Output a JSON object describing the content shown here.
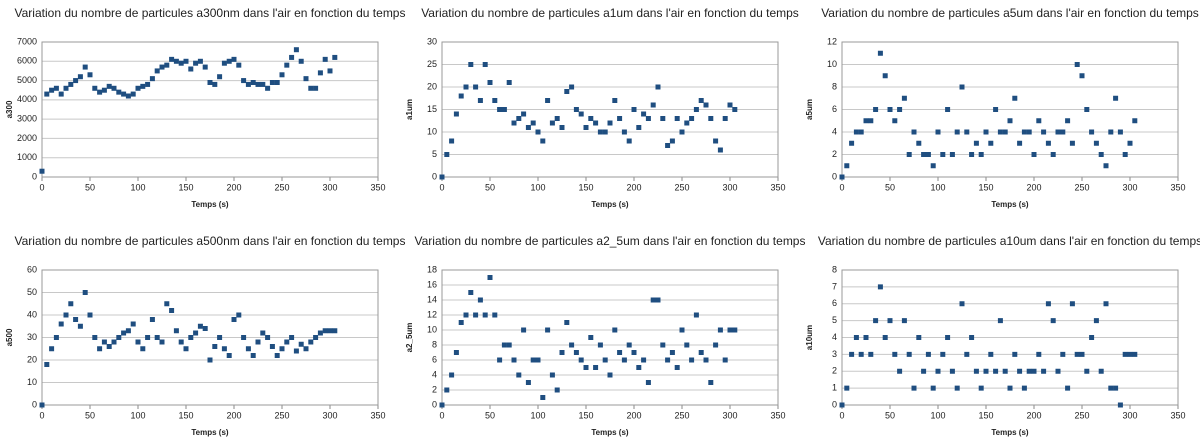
{
  "chart_data": [
    {
      "type": "scatter",
      "title": "Variation du nombre de particules a300nm dans l'air en fonction du temps",
      "x_label": "Temps (s)",
      "y_label": "a300",
      "color": "#1f4e80",
      "grid": true,
      "xlim": [
        0,
        350
      ],
      "xticks": [
        0,
        50,
        100,
        150,
        200,
        250,
        300,
        350
      ],
      "ylim": [
        0,
        7000
      ],
      "yticks": [
        0,
        1000,
        2000,
        3000,
        4000,
        5000,
        6000,
        7000
      ],
      "x": [
        0,
        5,
        10,
        15,
        20,
        25,
        30,
        35,
        40,
        45,
        50,
        55,
        60,
        65,
        70,
        75,
        80,
        85,
        90,
        95,
        100,
        105,
        110,
        115,
        120,
        125,
        130,
        135,
        140,
        145,
        150,
        155,
        160,
        165,
        170,
        175,
        180,
        185,
        190,
        195,
        200,
        205,
        210,
        215,
        220,
        225,
        230,
        235,
        240,
        245,
        250,
        255,
        260,
        265,
        270,
        275,
        280,
        285,
        290,
        295,
        300,
        305
      ],
      "values": [
        300,
        4300,
        4500,
        4600,
        4300,
        4600,
        4800,
        5000,
        5200,
        5700,
        5300,
        4600,
        4400,
        4500,
        4700,
        4600,
        4400,
        4300,
        4200,
        4300,
        4600,
        4700,
        4800,
        5100,
        5500,
        5700,
        5800,
        6100,
        6000,
        5900,
        6000,
        5600,
        5900,
        6000,
        5700,
        4900,
        4800,
        5200,
        5900,
        6000,
        6100,
        5800,
        5000,
        4800,
        4900,
        4800,
        4800,
        4600,
        4900,
        4900,
        5300,
        5800,
        6200,
        6600,
        6000,
        5100,
        4600,
        4600,
        5400,
        6100,
        5500,
        6200
      ]
    },
    {
      "type": "scatter",
      "title": "Variation du nombre de particules a1um dans l'air en fonction du temps",
      "x_label": "Temps (s)",
      "y_label": "a1um",
      "color": "#1f4e80",
      "grid": true,
      "xlim": [
        0,
        350
      ],
      "xticks": [
        0,
        50,
        100,
        150,
        200,
        250,
        300,
        350
      ],
      "ylim": [
        0,
        30
      ],
      "yticks": [
        0,
        5,
        10,
        15,
        20,
        25,
        30
      ],
      "x": [
        0,
        5,
        10,
        15,
        20,
        25,
        30,
        35,
        40,
        45,
        50,
        55,
        60,
        65,
        70,
        75,
        80,
        85,
        90,
        95,
        100,
        105,
        110,
        115,
        120,
        125,
        130,
        135,
        140,
        145,
        150,
        155,
        160,
        165,
        170,
        175,
        180,
        185,
        190,
        195,
        200,
        205,
        210,
        215,
        220,
        225,
        230,
        235,
        240,
        245,
        250,
        255,
        260,
        265,
        270,
        275,
        280,
        285,
        290,
        295,
        300,
        305
      ],
      "values": [
        0,
        5,
        8,
        14,
        18,
        20,
        25,
        20,
        17,
        25,
        21,
        17,
        15,
        15,
        21,
        12,
        13,
        14,
        11,
        12,
        10,
        8,
        17,
        12,
        13,
        11,
        19,
        20,
        15,
        14,
        11,
        13,
        12,
        10,
        10,
        12,
        17,
        13,
        10,
        8,
        15,
        11,
        14,
        13,
        16,
        20,
        13,
        7,
        8,
        13,
        10,
        12,
        13,
        15,
        17,
        16,
        13,
        8,
        6,
        13,
        16,
        15
      ]
    },
    {
      "type": "scatter",
      "title": "Variation du nombre de particules a5um dans l'air en fonction du temps",
      "x_label": "Temps (s)",
      "y_label": "a5um",
      "color": "#1f4e80",
      "grid": true,
      "xlim": [
        0,
        350
      ],
      "xticks": [
        0,
        50,
        100,
        150,
        200,
        250,
        300,
        350
      ],
      "ylim": [
        0,
        12
      ],
      "yticks": [
        0,
        2,
        4,
        6,
        8,
        10,
        12
      ],
      "x": [
        0,
        5,
        10,
        15,
        20,
        25,
        30,
        35,
        40,
        45,
        50,
        55,
        60,
        65,
        70,
        75,
        80,
        85,
        90,
        95,
        100,
        105,
        110,
        115,
        120,
        125,
        130,
        135,
        140,
        145,
        150,
        155,
        160,
        165,
        170,
        175,
        180,
        185,
        190,
        195,
        200,
        205,
        210,
        215,
        220,
        225,
        230,
        235,
        240,
        245,
        250,
        255,
        260,
        265,
        270,
        275,
        280,
        285,
        290,
        295,
        300,
        305
      ],
      "values": [
        0,
        1,
        3,
        4,
        4,
        5,
        5,
        6,
        11,
        9,
        6,
        5,
        6,
        7,
        2,
        4,
        3,
        2,
        2,
        1,
        4,
        2,
        6,
        2,
        4,
        8,
        4,
        2,
        3,
        2,
        4,
        3,
        6,
        4,
        4,
        5,
        7,
        3,
        4,
        4,
        2,
        5,
        4,
        3,
        2,
        4,
        4,
        5,
        3,
        10,
        9,
        6,
        4,
        3,
        2,
        1,
        4,
        7,
        4,
        2,
        3,
        5
      ]
    },
    {
      "type": "scatter",
      "title": "Variation du nombre de particules a500nm dans l'air en fonction du temps",
      "x_label": "Temps (s)",
      "y_label": "a500",
      "color": "#1f4e80",
      "grid": true,
      "xlim": [
        0,
        350
      ],
      "xticks": [
        0,
        50,
        100,
        150,
        200,
        250,
        300,
        350
      ],
      "ylim": [
        0,
        60
      ],
      "yticks": [
        0,
        10,
        20,
        30,
        40,
        50,
        60
      ],
      "x": [
        0,
        5,
        10,
        15,
        20,
        25,
        30,
        35,
        40,
        45,
        50,
        55,
        60,
        65,
        70,
        75,
        80,
        85,
        90,
        95,
        100,
        105,
        110,
        115,
        120,
        125,
        130,
        135,
        140,
        145,
        150,
        155,
        160,
        165,
        170,
        175,
        180,
        185,
        190,
        195,
        200,
        205,
        210,
        215,
        220,
        225,
        230,
        235,
        240,
        245,
        250,
        255,
        260,
        265,
        270,
        275,
        280,
        285,
        290,
        295,
        300,
        305
      ],
      "values": [
        0,
        18,
        25,
        30,
        36,
        40,
        45,
        38,
        35,
        50,
        40,
        30,
        25,
        28,
        26,
        28,
        30,
        32,
        33,
        36,
        28,
        25,
        30,
        38,
        30,
        28,
        45,
        42,
        33,
        28,
        25,
        30,
        32,
        35,
        34,
        20,
        26,
        30,
        25,
        22,
        38,
        40,
        30,
        25,
        22,
        28,
        32,
        30,
        26,
        22,
        25,
        28,
        30,
        24,
        27,
        25,
        28,
        30,
        32,
        33,
        33,
        33
      ]
    },
    {
      "type": "scatter",
      "title": "Variation du nombre de particules a2_5um dans l'air en fonction du temps",
      "x_label": "Temps (s)",
      "y_label": "a2_5um",
      "color": "#1f4e80",
      "grid": true,
      "xlim": [
        0,
        350
      ],
      "xticks": [
        0,
        50,
        100,
        150,
        200,
        250,
        300,
        350
      ],
      "ylim": [
        0,
        18
      ],
      "yticks": [
        0,
        2,
        4,
        6,
        8,
        10,
        12,
        14,
        16,
        18
      ],
      "x": [
        0,
        5,
        10,
        15,
        20,
        25,
        30,
        35,
        40,
        45,
        50,
        55,
        60,
        65,
        70,
        75,
        80,
        85,
        90,
        95,
        100,
        105,
        110,
        115,
        120,
        125,
        130,
        135,
        140,
        145,
        150,
        155,
        160,
        165,
        170,
        175,
        180,
        185,
        190,
        195,
        200,
        205,
        210,
        215,
        220,
        225,
        230,
        235,
        240,
        245,
        250,
        255,
        260,
        265,
        270,
        275,
        280,
        285,
        290,
        295,
        300,
        305
      ],
      "values": [
        0,
        2,
        4,
        7,
        11,
        12,
        15,
        12,
        14,
        12,
        17,
        12,
        6,
        8,
        8,
        6,
        4,
        10,
        3,
        6,
        6,
        1,
        10,
        4,
        2,
        7,
        11,
        8,
        7,
        6,
        5,
        9,
        5,
        8,
        6,
        4,
        10,
        7,
        6,
        8,
        7,
        5,
        6,
        3,
        14,
        14,
        8,
        6,
        7,
        5,
        10,
        8,
        6,
        12,
        7,
        6,
        3,
        8,
        10,
        6,
        10,
        10
      ]
    },
    {
      "type": "scatter",
      "title": "Variation du nombre de particules a10um dans l'air en fonction du temps",
      "x_label": "Temps (s)",
      "y_label": "a10um",
      "color": "#1f4e80",
      "grid": true,
      "xlim": [
        0,
        350
      ],
      "xticks": [
        0,
        50,
        100,
        150,
        200,
        250,
        300,
        350
      ],
      "ylim": [
        0,
        8
      ],
      "yticks": [
        0,
        1,
        2,
        3,
        4,
        5,
        6,
        7,
        8
      ],
      "x": [
        0,
        5,
        10,
        15,
        20,
        25,
        30,
        35,
        40,
        45,
        50,
        55,
        60,
        65,
        70,
        75,
        80,
        85,
        90,
        95,
        100,
        105,
        110,
        115,
        120,
        125,
        130,
        135,
        140,
        145,
        150,
        155,
        160,
        165,
        170,
        175,
        180,
        185,
        190,
        195,
        200,
        205,
        210,
        215,
        220,
        225,
        230,
        235,
        240,
        245,
        250,
        255,
        260,
        265,
        270,
        275,
        280,
        285,
        290,
        295,
        300,
        305
      ],
      "values": [
        0,
        1,
        3,
        4,
        3,
        4,
        3,
        5,
        7,
        4,
        5,
        3,
        2,
        5,
        3,
        1,
        4,
        2,
        3,
        1,
        2,
        3,
        4,
        2,
        1,
        6,
        3,
        4,
        2,
        1,
        2,
        3,
        2,
        5,
        2,
        1,
        3,
        2,
        1,
        2,
        2,
        3,
        2,
        6,
        5,
        2,
        3,
        1,
        6,
        3,
        3,
        2,
        4,
        5,
        2,
        6,
        1,
        1,
        0,
        3,
        3,
        3
      ]
    }
  ]
}
